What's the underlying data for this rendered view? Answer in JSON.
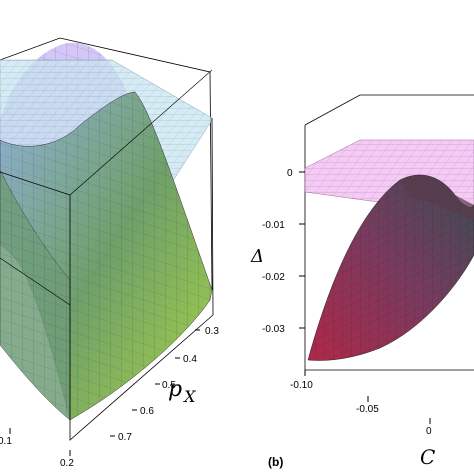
{
  "panel_a": {
    "axis_right": {
      "label": "p",
      "label_sub": "X",
      "ticks": [
        "0.3",
        "0.4",
        "0.5",
        "0.6",
        "0.7"
      ]
    },
    "axis_bottom": {
      "ticks": [
        "0.1",
        "0.2"
      ]
    }
  },
  "panel_b": {
    "label": "(b)",
    "axis_vertical": {
      "label": "Δ",
      "ticks": [
        "0",
        "-0.01",
        "-0.02",
        "-0.03"
      ]
    },
    "axis_bottom": {
      "label": "C",
      "ticks": [
        "-0.10",
        "-0.05",
        "0"
      ]
    }
  },
  "colors": {
    "plane_a": "#c8dcf0",
    "plane_b": "#f0b4f0",
    "surface_a_top": "#a8b0e8",
    "surface_a_bottom": "#78b040",
    "surface_b_left": "#a0304a",
    "surface_b_right": "#505060"
  }
}
